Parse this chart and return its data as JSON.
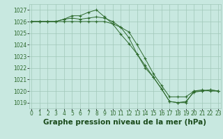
{
  "background_color": "#c8e8e0",
  "grid_color": "#a0c8b8",
  "line_color": "#2d6a2d",
  "xlabel": "Graphe pression niveau de la mer (hPa)",
  "xlabel_fontsize": 7.5,
  "xlabel_color": "#1a4a1a",
  "ylim": [
    1018.5,
    1027.5
  ],
  "xlim": [
    -0.3,
    23.3
  ],
  "yticks": [
    1019,
    1020,
    1021,
    1022,
    1023,
    1024,
    1025,
    1026,
    1027
  ],
  "xticks": [
    0,
    1,
    2,
    3,
    4,
    5,
    6,
    7,
    8,
    9,
    10,
    11,
    12,
    13,
    14,
    15,
    16,
    17,
    18,
    19,
    20,
    21,
    22,
    23
  ],
  "tick_fontsize": 5.5,
  "series": [
    {
      "x": [
        0,
        1,
        2,
        3,
        4,
        5,
        6,
        7,
        8,
        9,
        10,
        11,
        12,
        13,
        14,
        15,
        16,
        17,
        18,
        19,
        20,
        21,
        22,
        23
      ],
      "y": [
        1026.0,
        1026.0,
        1026.0,
        1026.0,
        1026.2,
        1026.5,
        1026.5,
        1026.8,
        1027.0,
        1026.4,
        1025.8,
        1024.9,
        1024.1,
        1023.2,
        1022.2,
        1021.2,
        1020.2,
        1019.1,
        1019.0,
        1019.0,
        1020.0,
        1020.1,
        1020.0,
        1020.0
      ]
    },
    {
      "x": [
        0,
        1,
        2,
        3,
        4,
        5,
        6,
        7,
        8,
        9,
        10,
        11,
        12,
        13,
        14,
        15,
        16,
        17,
        18,
        19,
        20,
        21,
        22,
        23
      ],
      "y": [
        1026.0,
        1026.0,
        1026.0,
        1026.0,
        1026.0,
        1026.0,
        1026.0,
        1026.0,
        1026.0,
        1026.0,
        1025.8,
        1025.5,
        1025.1,
        1024.0,
        1022.8,
        1021.5,
        1020.5,
        1019.5,
        1019.5,
        1019.5,
        1020.0,
        1020.0,
        1020.1,
        1020.0
      ]
    },
    {
      "x": [
        0,
        1,
        2,
        3,
        4,
        5,
        6,
        7,
        8,
        9,
        10,
        11,
        12,
        13,
        14,
        15,
        16,
        17,
        18,
        19,
        20,
        21,
        22,
        23
      ],
      "y": [
        1026.0,
        1026.0,
        1026.0,
        1026.0,
        1026.2,
        1026.3,
        1026.2,
        1026.3,
        1026.4,
        1026.3,
        1026.0,
        1025.5,
        1024.6,
        1023.2,
        1022.0,
        1021.2,
        1020.2,
        1019.1,
        1019.0,
        1019.1,
        1019.9,
        1020.0,
        1020.1,
        1020.0
      ]
    }
  ]
}
